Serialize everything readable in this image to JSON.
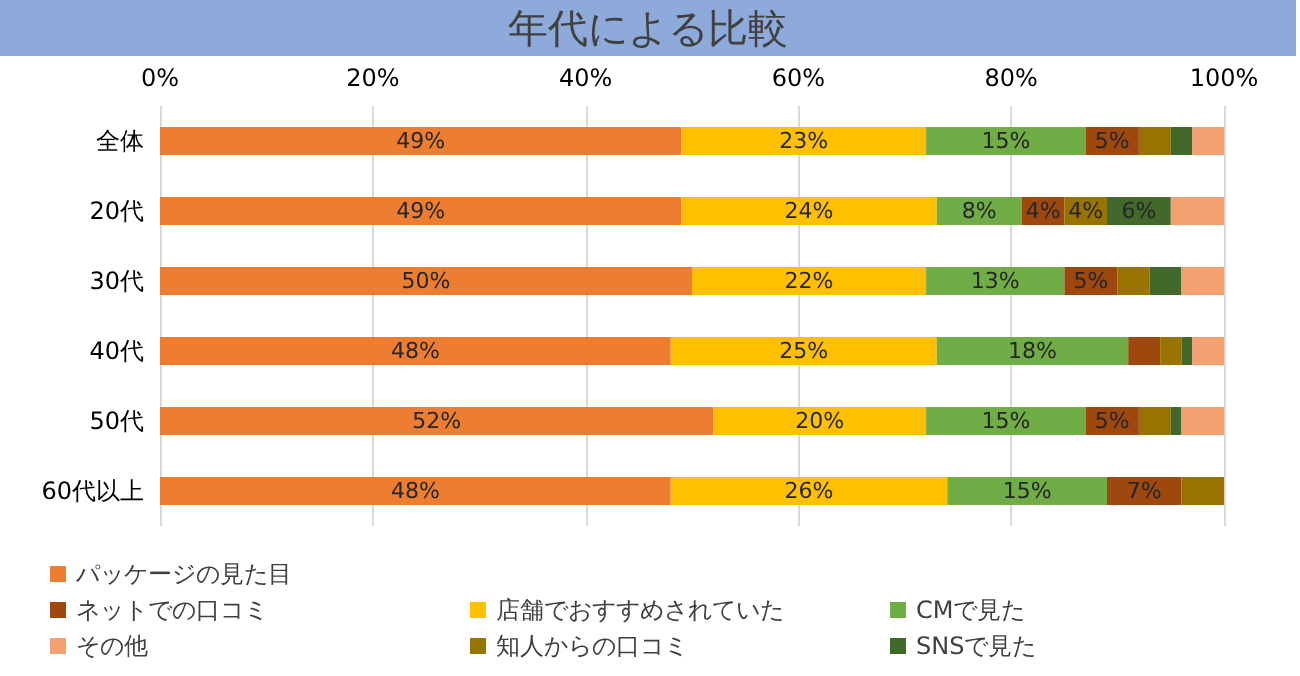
{
  "chart_data": {
    "type": "bar",
    "title": "年代による比較",
    "orientation": "horizontal",
    "stacked": true,
    "grid": "x",
    "legend": "bottom",
    "categories": [
      "全体",
      "20代",
      "30代",
      "40代",
      "50代",
      "60代以上"
    ],
    "xlim": [
      0,
      100
    ],
    "xticks": [
      {
        "value": 0,
        "label": "0%"
      },
      {
        "value": 20,
        "label": "20%"
      },
      {
        "value": 40,
        "label": "40%"
      },
      {
        "value": 60,
        "label": "60%"
      },
      {
        "value": 80,
        "label": "80%"
      },
      {
        "value": 100,
        "label": "100%"
      }
    ],
    "series": [
      {
        "name": "パッケージの見た目",
        "color": "#ed7d31",
        "values": [
          49,
          49,
          50,
          48,
          52,
          48
        ],
        "value_labels": [
          "49%",
          "49%",
          "50%",
          "48%",
          "52%",
          "48%"
        ]
      },
      {
        "name": "店舗でおすすめされていた",
        "color": "#ffc000",
        "values": [
          23,
          24,
          22,
          25,
          20,
          26
        ],
        "value_labels": [
          "23%",
          "24%",
          "22%",
          "25%",
          "20%",
          "26%"
        ]
      },
      {
        "name": "CMで見た",
        "color": "#70ad47",
        "values": [
          15,
          8,
          13,
          18,
          15,
          15
        ],
        "value_labels": [
          "15%",
          "8%",
          "13%",
          "18%",
          "15%",
          "15%"
        ]
      },
      {
        "name": "ネットでの口コミ",
        "color": "#9e480e",
        "values": [
          5,
          4,
          5,
          3,
          5,
          7
        ],
        "value_labels": [
          "5%",
          "4%",
          "5%",
          null,
          "5%",
          "7%"
        ]
      },
      {
        "name": "知人からの口コミ",
        "color": "#997300",
        "values": [
          3,
          4,
          3,
          2,
          3,
          4
        ],
        "value_labels": [
          null,
          "4%",
          null,
          null,
          null,
          null
        ]
      },
      {
        "name": "SNSで見た",
        "color": "#43682b",
        "values": [
          2,
          6,
          3,
          1,
          1,
          0
        ],
        "value_labels": [
          null,
          "6%",
          null,
          null,
          null,
          null
        ]
      },
      {
        "name": "その他",
        "color": "#f4a070",
        "values": [
          3,
          5,
          4,
          3,
          4,
          0
        ],
        "value_labels": [
          null,
          null,
          null,
          null,
          null,
          null
        ]
      }
    ]
  }
}
